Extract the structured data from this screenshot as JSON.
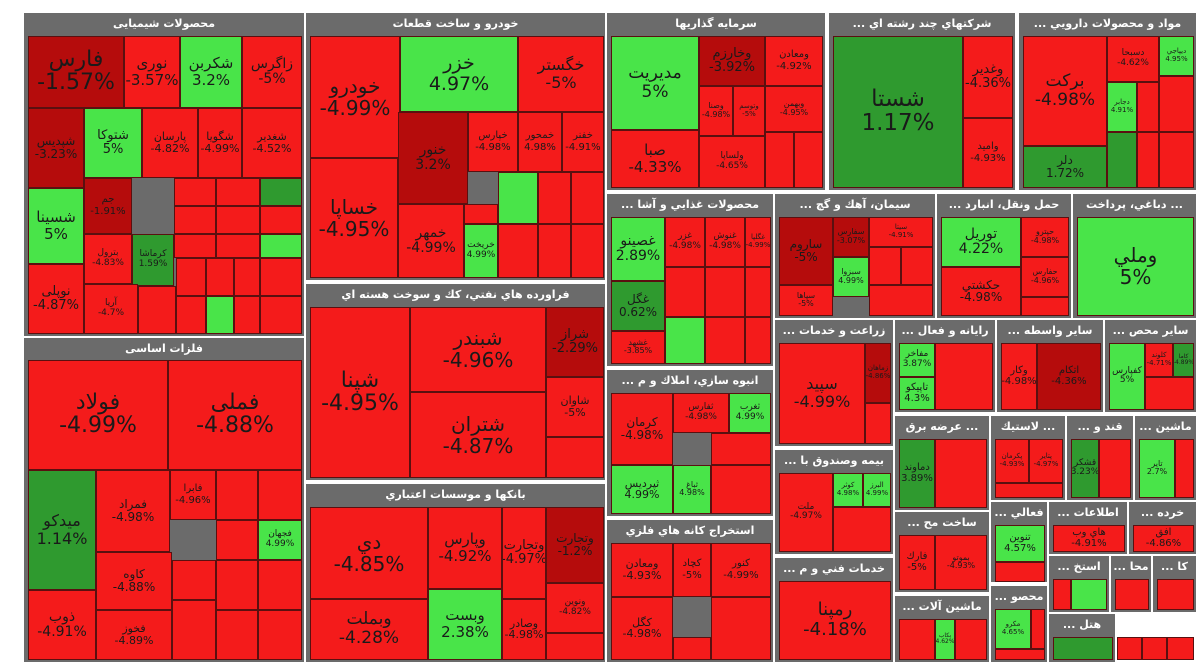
{
  "colors": {
    "red": "#f41b1b",
    "dark_red": "#b50c0c",
    "green": "#49e449",
    "dark_green": "#2f9a2f",
    "header": "#6b6b6b"
  },
  "sectors": [
    {
      "id": "chem",
      "title": "محصولات شیمیایی",
      "tiles": [
        {
          "sym": "فارس",
          "chg": "-1.57%"
        },
        {
          "sym": "نوری",
          "chg": "-3.57%"
        },
        {
          "sym": "شکربن",
          "chg": "3.2%"
        },
        {
          "sym": "زاگرس",
          "chg": "-5%"
        },
        {
          "sym": "شپدیس",
          "chg": "-3.23%"
        },
        {
          "sym": "شتوکا",
          "chg": "5%"
        },
        {
          "sym": "پارسان",
          "chg": "-4.82%"
        },
        {
          "sym": "شگویا",
          "chg": "-4.99%"
        },
        {
          "sym": "شغدیر",
          "chg": "-4.52%"
        },
        {
          "sym": "شسینا",
          "chg": "5%"
        },
        {
          "sym": "جم",
          "chg": "-1.91%"
        },
        {
          "sym": "بترول",
          "chg": "-4.83%"
        },
        {
          "sym": "کرماشا",
          "chg": "1.59%"
        },
        {
          "sym": "نوپلی",
          "chg": "-4.87%"
        },
        {
          "sym": "آریا",
          "chg": "-4.7%"
        }
      ]
    },
    {
      "id": "metal",
      "title": "فلزات اساسی",
      "tiles": [
        {
          "sym": "فولاد",
          "chg": "-4.99%"
        },
        {
          "sym": "فملی",
          "chg": "-4.88%"
        },
        {
          "sym": "میدکو",
          "chg": "1.14%"
        },
        {
          "sym": "فمراد",
          "chg": "-4.98%"
        },
        {
          "sym": "فابرا",
          "chg": "-4.96%"
        },
        {
          "sym": "فجهان",
          "chg": "4.99%"
        },
        {
          "sym": "کاوه",
          "chg": "-4.88%"
        },
        {
          "sym": "ذوب",
          "chg": "-4.91%"
        },
        {
          "sym": "فخوز",
          "chg": "-4.89%"
        }
      ]
    },
    {
      "id": "auto",
      "title": "خودرو و ساخت قطعات",
      "tiles": [
        {
          "sym": "خودرو",
          "chg": "-4.99%"
        },
        {
          "sym": "خزر",
          "chg": "4.97%"
        },
        {
          "sym": "خگستر",
          "chg": "-5%"
        },
        {
          "sym": "خساپا",
          "chg": "-4.95%"
        },
        {
          "sym": "خنور",
          "chg": "3.2%"
        },
        {
          "sym": "خپارس",
          "chg": "-4.98%"
        },
        {
          "sym": "خمحور",
          "chg": "4.98%"
        },
        {
          "sym": "خفنر",
          "chg": "-4.91%"
        },
        {
          "sym": "خمهر",
          "chg": "-4.99%"
        },
        {
          "sym": "خریخت",
          "chg": "4.99%"
        }
      ]
    },
    {
      "id": "oil",
      "title": "فراورده هاي نفتي، كك و سوخت هسته اي",
      "tiles": [
        {
          "sym": "شپنا",
          "chg": "-4.95%"
        },
        {
          "sym": "شبندر",
          "chg": "-4.96%"
        },
        {
          "sym": "شتران",
          "chg": "-4.87%"
        },
        {
          "sym": "شراز",
          "chg": "-2.29%"
        },
        {
          "sym": "شاوان",
          "chg": "-5%"
        }
      ]
    },
    {
      "id": "bank",
      "title": "بانکها و موسسات اعتباري",
      "tiles": [
        {
          "sym": "دي",
          "chg": "-4.85%"
        },
        {
          "sym": "وپارس",
          "chg": "-4.92%"
        },
        {
          "sym": "وتجارت",
          "chg": "-4.97%"
        },
        {
          "sym": "وبملت",
          "chg": "-4.28%"
        },
        {
          "sym": "وبست",
          "chg": "2.38%"
        },
        {
          "sym": "وصادر",
          "chg": "-4.98%"
        },
        {
          "sym": "وتجارت",
          "chg": "-1.2%"
        },
        {
          "sym": "ونوین",
          "chg": "-4.82%"
        }
      ]
    },
    {
      "id": "invest",
      "title": "سرمايه گذاريها",
      "tiles": [
        {
          "sym": "مديريت",
          "chg": "5%"
        },
        {
          "sym": "وخارزم",
          "chg": "-3.92%"
        },
        {
          "sym": "ومعادن",
          "chg": "-4.92%"
        },
        {
          "sym": "وصنا",
          "chg": "-4.98%"
        },
        {
          "sym": "وبهمن",
          "chg": "-4.95%"
        },
        {
          "sym": "صبا",
          "chg": "-4.33%"
        },
        {
          "sym": "ولساپا",
          "chg": "-4.65%"
        },
        {
          "sym": "وتوسم",
          "chg": "-5%"
        }
      ]
    },
    {
      "id": "multi",
      "title": "شرکتهاي چند رشته اي ...",
      "tiles": [
        {
          "sym": "شستا",
          "chg": "1.17%"
        },
        {
          "sym": "وغدير",
          "chg": "-4.36%"
        },
        {
          "sym": "وامید",
          "chg": "-4.93%"
        }
      ]
    },
    {
      "id": "pharma",
      "title": "مواد و محصولات دارويي ...",
      "tiles": [
        {
          "sym": "برکت",
          "chg": "-4.98%"
        },
        {
          "sym": "دلر",
          "chg": "1.72%"
        },
        {
          "sym": "دسبحا",
          "chg": "-4.62%"
        },
        {
          "sym": "ديپاجي",
          "chg": "4.95%"
        },
        {
          "sym": "دجابر",
          "chg": "4.91%"
        }
      ]
    },
    {
      "id": "food",
      "title": "محصولات غذايي و آشا ...",
      "tiles": [
        {
          "sym": "غصينو",
          "chg": "2.89%"
        },
        {
          "sym": "غزر",
          "chg": "-4.98%"
        },
        {
          "sym": "غنوش",
          "chg": "-4.98%"
        },
        {
          "sym": "غگلپا",
          "chg": "-4.99%"
        },
        {
          "sym": "غگل",
          "chg": "0.62%"
        },
        {
          "sym": "غشهد",
          "chg": "-3.85%"
        }
      ]
    },
    {
      "id": "cement",
      "title": "سيمان، آهك و گچ ...",
      "tiles": [
        {
          "sym": "ساروم",
          "chg": "-5%"
        },
        {
          "sym": "سفارس",
          "chg": "-3.07%"
        },
        {
          "sym": "سيتا",
          "chg": "-4.91%"
        },
        {
          "sym": "سپاها",
          "chg": "-5%"
        },
        {
          "sym": "سبزوا",
          "chg": "4.99%"
        }
      ]
    },
    {
      "id": "transport",
      "title": "حمل ونقل، انبارد ...",
      "tiles": [
        {
          "sym": "توريل",
          "chg": "4.22%"
        },
        {
          "sym": "حكشتي",
          "chg": "-4.98%"
        },
        {
          "sym": "حپترو",
          "chg": "-4.98%"
        },
        {
          "sym": "حفارس",
          "chg": "-4.96%"
        }
      ]
    },
    {
      "id": "payment",
      "title": "... دباغي، پرداخت",
      "tiles": [
        {
          "sym": "وملي",
          "chg": "5%"
        }
      ]
    },
    {
      "id": "ag",
      "title": "زراعت و خدمات ...",
      "tiles": [
        {
          "sym": "سپيد",
          "chg": "-4.99%"
        },
        {
          "sym": "زماهان",
          "chg": "-4.86%"
        }
      ]
    },
    {
      "id": "ict",
      "title": "رايانه و فعال ...",
      "tiles": [
        {
          "sym": "مفاخر",
          "chg": "3.87%"
        },
        {
          "sym": "تاپيكو",
          "chg": "4.3%"
        }
      ]
    },
    {
      "id": "brokers",
      "title": "سایر واسطه ...",
      "tiles": [
        {
          "sym": "وكار",
          "chg": "-4.98%"
        },
        {
          "sym": "اتكام",
          "chg": "-4.36%"
        }
      ]
    },
    {
      "id": "other",
      "title": "سایر محص ...",
      "tiles": [
        {
          "sym": "کفپارس",
          "chg": "5%"
        },
        {
          "sym": "کلوند",
          "chg": "-4.71%"
        },
        {
          "sym": "کاما",
          "chg": "-4.89%"
        }
      ]
    },
    {
      "id": "realestate",
      "title": "انبوه سازي، املاك و م ...",
      "tiles": [
        {
          "sym": "كرمان",
          "chg": "-4.98%"
        },
        {
          "sym": "ثفارس",
          "chg": "-4.98%"
        },
        {
          "sym": "ثغرب",
          "chg": "4.99%"
        },
        {
          "sym": "ثپردیس",
          "chg": "4.99%"
        },
        {
          "sym": "ثباغ",
          "chg": "4.98%"
        }
      ]
    },
    {
      "id": "mining",
      "title": "استخراج كانه هاي فلزي",
      "tiles": [
        {
          "sym": "ومعادن",
          "chg": "-4.93%"
        },
        {
          "sym": "كچاد",
          "chg": "-5%"
        },
        {
          "sym": "كنور",
          "chg": "-4.99%"
        },
        {
          "sym": "كگل",
          "chg": "-4.98%"
        }
      ]
    },
    {
      "id": "tech",
      "title": "خدمات فني و م ...",
      "tiles": [
        {
          "sym": "رمپنا",
          "chg": "-4.18%"
        }
      ]
    },
    {
      "id": "supply",
      "title": "... عرضه برق",
      "tiles": [
        {
          "sym": "دماوند",
          "chg": "3.89%"
        }
      ]
    },
    {
      "id": "insurance",
      "title": "بيمه وصندوق با ...",
      "tiles": [
        {
          "sym": "ملت",
          "chg": "-4.97%"
        },
        {
          "sym": "كوثر",
          "chg": "4.98%"
        },
        {
          "sym": "البرز",
          "chg": "4.99%"
        }
      ]
    },
    {
      "id": "plastic",
      "title": "... لاستيك",
      "tiles": [
        {
          "sym": "پکرمان",
          "chg": "-4.93%"
        },
        {
          "sym": "پتاير",
          "chg": "-4.97%"
        }
      ]
    },
    {
      "id": "sugar",
      "title": "قند و ...",
      "tiles": [
        {
          "sym": "قشكر",
          "chg": "3.23%"
        }
      ]
    },
    {
      "id": "machinery",
      "title": "ماشين ...",
      "tiles": [
        {
          "sym": "تاير",
          "chg": "2.7%"
        }
      ]
    },
    {
      "id": "construction",
      "title": "ساخت مح ...",
      "tiles": [
        {
          "sym": "فارك",
          "chg": "-5%"
        },
        {
          "sym": "بموتو",
          "chg": "-4.93%"
        }
      ]
    },
    {
      "id": "activity",
      "title": "فعالي ...",
      "tiles": [
        {
          "sym": "تنوین",
          "chg": "4.57%"
        }
      ]
    },
    {
      "id": "info",
      "title": "اطلاعات ...",
      "tiles": [
        {
          "sym": "هاي وب",
          "chg": "-4.91%"
        }
      ]
    },
    {
      "id": "retail",
      "title": "خرده ...",
      "tiles": [
        {
          "sym": "افق",
          "chg": "-4.86%"
        }
      ]
    },
    {
      "id": "tools",
      "title": "ماشين آلات ...",
      "tiles": [
        {
          "sym": "بكاب",
          "chg": "4.62%"
        }
      ]
    },
    {
      "id": "products",
      "title": "محصو ...",
      "tiles": [
        {
          "sym": "مكرو",
          "chg": "4.65%"
        }
      ]
    },
    {
      "id": "extract",
      "title": "استخ ...",
      "tiles": []
    },
    {
      "id": "hotel",
      "title": "هتل ...",
      "tiles": []
    },
    {
      "id": "ma",
      "title": "محا ...",
      "tiles": []
    },
    {
      "id": "ka",
      "title": "کا ...",
      "tiles": []
    }
  ]
}
